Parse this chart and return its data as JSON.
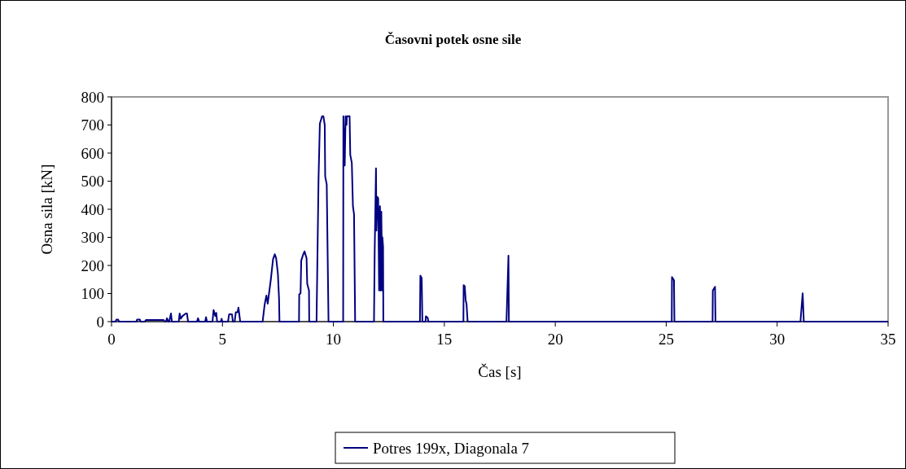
{
  "chart_data": {
    "type": "line",
    "title": "Časovni potek osne sile",
    "xlabel": "Čas [s]",
    "ylabel": "Osna sila [kN]",
    "xlim": [
      0,
      35
    ],
    "xticks": [
      0,
      5,
      10,
      15,
      20,
      25,
      30,
      35
    ],
    "ylim": [
      0,
      800
    ],
    "yticks": [
      0,
      100,
      200,
      300,
      400,
      500,
      600,
      700,
      800
    ],
    "grid": false,
    "legend": "bottom",
    "marker": "none",
    "line_style": "solid",
    "series": [
      {
        "name": "Potres 199x, Diagonala 7",
        "color": "#000080",
        "x": [
          0,
          0.18,
          0.22,
          0.3,
          0.34,
          1.12,
          1.15,
          1.28,
          1.31,
          1.5,
          1.55,
          2.35,
          2.4,
          2.45,
          2.5,
          2.56,
          2.6,
          2.68,
          2.72,
          3.03,
          3.07,
          3.12,
          3.2,
          3.35,
          3.4,
          3.45,
          3.85,
          3.9,
          3.95,
          4.22,
          4.26,
          4.3,
          4.55,
          4.6,
          4.68,
          4.72,
          4.76,
          4.92,
          4.96,
          5.0,
          5.25,
          5.3,
          5.43,
          5.47,
          5.55,
          5.6,
          5.68,
          5.72,
          5.8,
          6.81,
          6.9,
          6.98,
          7.04,
          7.18,
          7.28,
          7.36,
          7.42,
          7.5,
          7.55,
          7.57,
          8.45,
          8.46,
          8.52,
          8.55,
          8.63,
          8.7,
          8.79,
          8.82,
          8.9,
          8.91,
          9.24,
          9.27,
          9.33,
          9.39,
          9.49,
          9.55,
          9.61,
          9.63,
          9.7,
          9.78,
          10.44,
          10.45,
          10.51,
          10.55,
          10.59,
          10.61,
          10.73,
          10.76,
          10.83,
          10.88,
          10.93,
          10.98,
          11.83,
          11.86,
          11.92,
          11.94,
          11.98,
          12.02,
          12.06,
          12.1,
          12.13,
          12.16,
          12.2,
          12.21,
          12.24,
          12.25,
          13.9,
          13.92,
          13.98,
          14.01,
          14.15,
          14.17,
          14.25,
          14.28,
          15.86,
          15.87,
          15.92,
          15.96,
          16.0,
          16.05,
          17.8,
          17.89,
          17.91,
          25.25,
          25.26,
          25.35,
          25.37,
          27.09,
          27.1,
          27.2,
          27.22,
          31.05,
          31.15,
          31.2,
          35
        ],
        "values": [
          0,
          0,
          7,
          7,
          0,
          0,
          7,
          7,
          0,
          0,
          6,
          6,
          0,
          0,
          12,
          0,
          0,
          29,
          0,
          0,
          29,
          10,
          20,
          29,
          29,
          0,
          0,
          12,
          0,
          0,
          16,
          0,
          0,
          41,
          20,
          31,
          0,
          0,
          10,
          0,
          0,
          26,
          26,
          0,
          0,
          33,
          33,
          50,
          0,
          0,
          60,
          93,
          64,
          150,
          222,
          240,
          226,
          169,
          82,
          0,
          0,
          97,
          101,
          217,
          237,
          250,
          226,
          135,
          111,
          0,
          0,
          169,
          507,
          705,
          731,
          731,
          700,
          517,
          488,
          0,
          0,
          731,
          556,
          731,
          700,
          731,
          731,
          594,
          565,
          411,
          382,
          0,
          0,
          246,
          546,
          324,
          444,
          439,
          111,
          411,
          111,
          391,
          111,
          300,
          266,
          0,
          0,
          164,
          155,
          0,
          0,
          19,
          14,
          0,
          0,
          130,
          126,
          77,
          63,
          0,
          0,
          235,
          0,
          0,
          159,
          147,
          0,
          0,
          111,
          124,
          0,
          0,
          101,
          0,
          0
        ]
      }
    ]
  }
}
